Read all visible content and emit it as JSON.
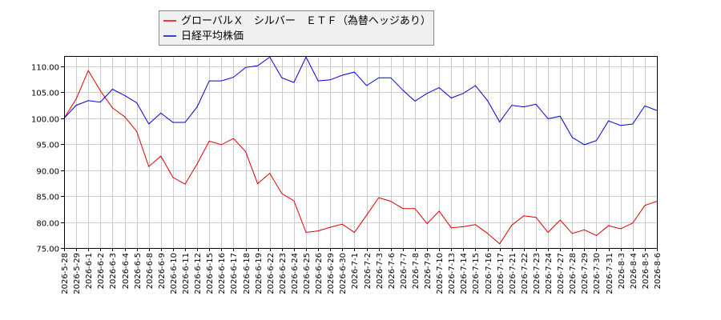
{
  "chart_data": {
    "type": "line",
    "ylim": [
      75,
      112
    ],
    "yticks": [
      "75.00",
      "80.00",
      "85.00",
      "90.00",
      "95.00",
      "100.00",
      "105.00",
      "110.00"
    ],
    "grid": true,
    "legend_position": "top-left",
    "x": [
      "2026-5-28",
      "2026-5-29",
      "2026-6-1",
      "2026-6-2",
      "2026-6-3",
      "2026-6-4",
      "2026-6-5",
      "2026-6-8",
      "2026-6-9",
      "2026-6-10",
      "2026-6-11",
      "2026-6-12",
      "2026-6-15",
      "2026-6-16",
      "2026-6-17",
      "2026-6-18",
      "2026-6-19",
      "2026-6-22",
      "2026-6-23",
      "2026-6-24",
      "2026-6-25",
      "2026-6-26",
      "2026-6-29",
      "2026-6-30",
      "2026-7-1",
      "2026-7-2",
      "2026-7-3",
      "2026-7-6",
      "2026-7-7",
      "2026-7-8",
      "2026-7-9",
      "2026-7-10",
      "2026-7-13",
      "2026-7-14",
      "2026-7-15",
      "2026-7-16",
      "2026-7-17",
      "2026-7-21",
      "2026-7-22",
      "2026-7-23",
      "2026-7-24",
      "2026-7-27",
      "2026-7-28",
      "2026-7-29",
      "2026-7-30",
      "2026-7-31",
      "2026-8-3",
      "2026-8-4",
      "2026-8-5",
      "2026-8-6"
    ],
    "series": [
      {
        "name": "グローバルＸ　シルバー　ＥＴＦ（為替ヘッジあり）",
        "color": "#dd0000",
        "values": [
          100.0,
          103.7,
          109.2,
          105.3,
          102.0,
          100.3,
          97.5,
          90.7,
          92.7,
          88.6,
          87.3,
          91.2,
          95.6,
          94.9,
          96.1,
          93.6,
          87.4,
          89.4,
          85.5,
          84.1,
          78.0,
          78.3,
          79.0,
          79.6,
          78.0,
          81.3,
          84.7,
          84.0,
          82.6,
          82.6,
          79.7,
          82.1,
          78.9,
          79.1,
          79.5,
          77.8,
          75.8,
          79.4,
          81.2,
          80.9,
          78.0,
          80.4,
          77.8,
          78.5,
          77.4,
          79.3,
          78.7,
          79.8,
          83.2,
          84.0
        ]
      },
      {
        "name": "日経平均株価",
        "color": "#0000dd",
        "values": [
          100.0,
          102.5,
          103.4,
          103.1,
          105.6,
          104.4,
          103.0,
          98.9,
          101.0,
          99.2,
          99.2,
          102.2,
          107.2,
          107.2,
          107.9,
          109.8,
          110.1,
          111.8,
          107.8,
          106.9,
          111.8,
          107.2,
          107.4,
          108.3,
          108.9,
          106.3,
          107.8,
          107.8,
          105.4,
          103.3,
          104.8,
          105.9,
          103.9,
          104.8,
          106.3,
          103.4,
          99.3,
          102.5,
          102.2,
          102.7,
          99.9,
          100.4,
          96.3,
          94.9,
          95.7,
          99.5,
          98.6,
          98.9,
          102.4,
          101.5
        ]
      }
    ]
  }
}
